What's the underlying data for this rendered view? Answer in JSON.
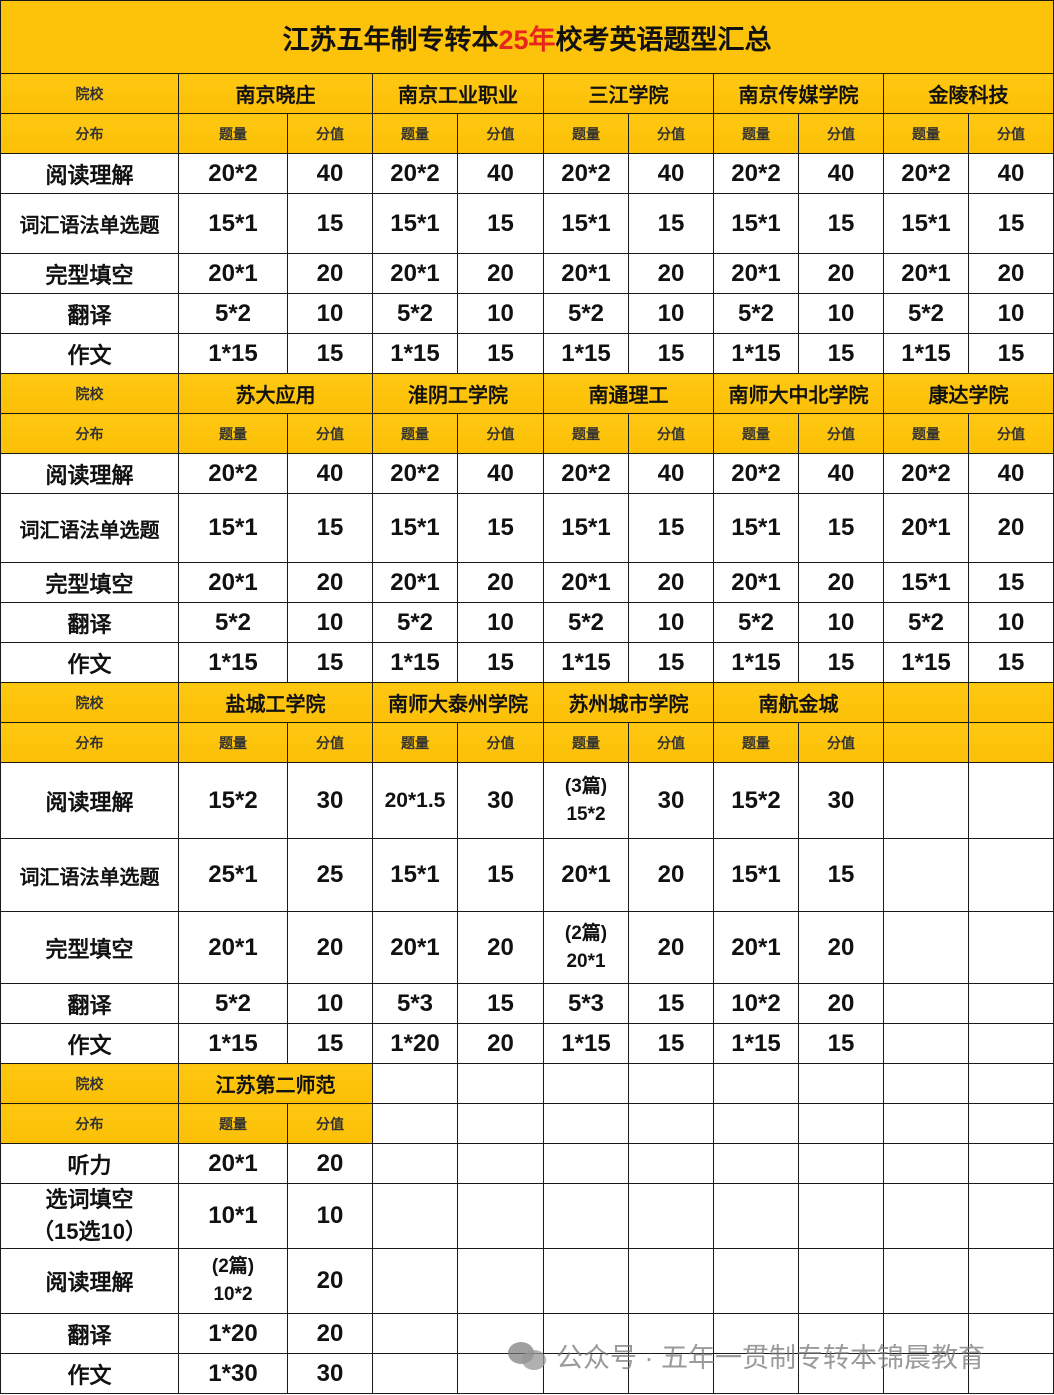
{
  "title": {
    "prefix": "江苏五年制专转本",
    "highlight": "25年",
    "suffix": "校考英语题型汇总",
    "highlight_color": "#e8251c"
  },
  "labels": {
    "school": "院校",
    "dist": "分布",
    "qty": "题量",
    "score": "分值"
  },
  "colors": {
    "header_fill": "#fdc20a",
    "border": "#1a1a1a"
  },
  "sections": [
    {
      "colleges": [
        "南京晓庄",
        "南京工业职业",
        "三江学院",
        "南京传媒学院",
        "金陵科技"
      ],
      "rows": [
        {
          "label": "阅读理解",
          "cells": [
            [
              "20*2",
              "40"
            ],
            [
              "20*2",
              "40"
            ],
            [
              "20*2",
              "40"
            ],
            [
              "20*2",
              "40"
            ],
            [
              "20*2",
              "40"
            ]
          ]
        },
        {
          "label": "词汇语法单选题",
          "cells": [
            [
              "15*1",
              "15"
            ],
            [
              "15*1",
              "15"
            ],
            [
              "15*1",
              "15"
            ],
            [
              "15*1",
              "15"
            ],
            [
              "15*1",
              "15"
            ]
          ]
        },
        {
          "label": "完型填空",
          "cells": [
            [
              "20*1",
              "20"
            ],
            [
              "20*1",
              "20"
            ],
            [
              "20*1",
              "20"
            ],
            [
              "20*1",
              "20"
            ],
            [
              "20*1",
              "20"
            ]
          ]
        },
        {
          "label": "翻译",
          "cells": [
            [
              "5*2",
              "10"
            ],
            [
              "5*2",
              "10"
            ],
            [
              "5*2",
              "10"
            ],
            [
              "5*2",
              "10"
            ],
            [
              "5*2",
              "10"
            ]
          ]
        },
        {
          "label": "作文",
          "cells": [
            [
              "1*15",
              "15"
            ],
            [
              "1*15",
              "15"
            ],
            [
              "1*15",
              "15"
            ],
            [
              "1*15",
              "15"
            ],
            [
              "1*15",
              "15"
            ]
          ]
        }
      ]
    },
    {
      "colleges": [
        "苏大应用",
        "淮阴工学院",
        "南通理工",
        "南师大中北学院",
        "康达学院"
      ],
      "rows": [
        {
          "label": "阅读理解",
          "cells": [
            [
              "20*2",
              "40"
            ],
            [
              "20*2",
              "40"
            ],
            [
              "20*2",
              "40"
            ],
            [
              "20*2",
              "40"
            ],
            [
              "20*2",
              "40"
            ]
          ]
        },
        {
          "label": "词汇语法单选题",
          "cells": [
            [
              "15*1",
              "15"
            ],
            [
              "15*1",
              "15"
            ],
            [
              "15*1",
              "15"
            ],
            [
              "15*1",
              "15"
            ],
            [
              "20*1",
              "20"
            ]
          ]
        },
        {
          "label": "完型填空",
          "cells": [
            [
              "20*1",
              "20"
            ],
            [
              "20*1",
              "20"
            ],
            [
              "20*1",
              "20"
            ],
            [
              "20*1",
              "20"
            ],
            [
              "15*1",
              "15"
            ]
          ]
        },
        {
          "label": "翻译",
          "cells": [
            [
              "5*2",
              "10"
            ],
            [
              "5*2",
              "10"
            ],
            [
              "5*2",
              "10"
            ],
            [
              "5*2",
              "10"
            ],
            [
              "5*2",
              "10"
            ]
          ]
        },
        {
          "label": "作文",
          "cells": [
            [
              "1*15",
              "15"
            ],
            [
              "1*15",
              "15"
            ],
            [
              "1*15",
              "15"
            ],
            [
              "1*15",
              "15"
            ],
            [
              "1*15",
              "15"
            ]
          ]
        }
      ]
    },
    {
      "colleges": [
        "盐城工学院",
        "南师大泰州学院",
        "苏州城市学院",
        "南航金城"
      ],
      "rows": [
        {
          "label": "阅读理解",
          "cells": [
            [
              "15*2",
              "30"
            ],
            [
              "20*1.5",
              "30"
            ],
            [
              "(3篇)\n15*2",
              "30"
            ],
            [
              "15*2",
              "30"
            ]
          ]
        },
        {
          "label": "词汇语法单选题",
          "cells": [
            [
              "25*1",
              "25"
            ],
            [
              "15*1",
              "15"
            ],
            [
              "20*1",
              "20"
            ],
            [
              "15*1",
              "15"
            ]
          ]
        },
        {
          "label": "完型填空",
          "cells": [
            [
              "20*1",
              "20"
            ],
            [
              "20*1",
              "20"
            ],
            [
              "(2篇)\n20*1",
              "20"
            ],
            [
              "20*1",
              "20"
            ]
          ]
        },
        {
          "label": "翻译",
          "cells": [
            [
              "5*2",
              "10"
            ],
            [
              "5*3",
              "15"
            ],
            [
              "5*3",
              "15"
            ],
            [
              "10*2",
              "20"
            ]
          ]
        },
        {
          "label": "作文",
          "cells": [
            [
              "1*15",
              "15"
            ],
            [
              "1*20",
              "20"
            ],
            [
              "1*15",
              "15"
            ],
            [
              "1*15",
              "15"
            ]
          ]
        }
      ]
    },
    {
      "colleges": [
        "江苏第二师范"
      ],
      "rows": [
        {
          "label": "听力",
          "cells": [
            [
              "20*1",
              "20"
            ]
          ]
        },
        {
          "label": "选词填空\n（15选10）",
          "cells": [
            [
              "10*1",
              "10"
            ]
          ]
        },
        {
          "label": "阅读理解",
          "cells": [
            [
              "(2篇)\n10*2",
              "20"
            ]
          ]
        },
        {
          "label": "翻译",
          "cells": [
            [
              "1*20",
              "20"
            ]
          ]
        },
        {
          "label": "作文",
          "cells": [
            [
              "1*30",
              "30"
            ]
          ]
        }
      ]
    }
  ],
  "watermark": "公众号 · 五年一贯制专转本锦晨教育"
}
